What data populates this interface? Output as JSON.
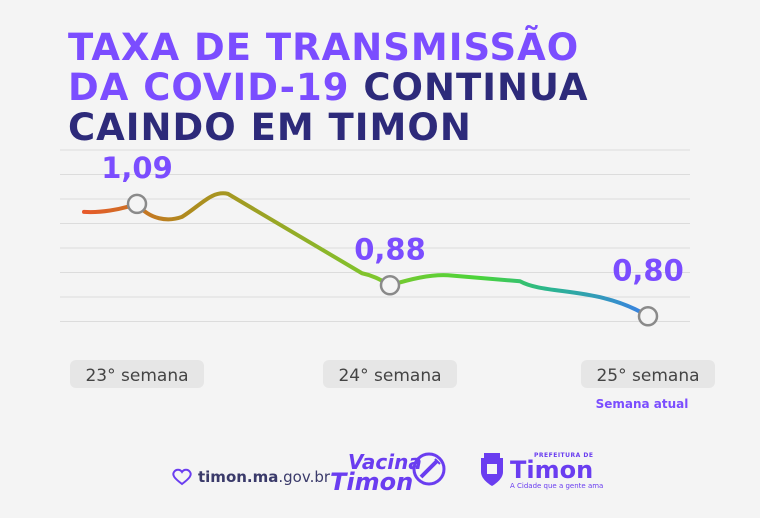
{
  "headline": {
    "line1": "TAXA DE TRANSMISSÃO",
    "line2_highlight": "DA COVID-19",
    "line2_rest": " CONTINUA",
    "line3": "CAINDO EM TIMON"
  },
  "chart_data": {
    "type": "line",
    "categories": [
      "23° semana",
      "24° semana",
      "25° semana"
    ],
    "values": [
      1.09,
      0.88,
      0.8
    ],
    "value_labels": [
      "1,09",
      "0,88",
      "0,80"
    ],
    "current_week_note": "Semana atual",
    "grid": true,
    "ylim": [
      0.7,
      1.1
    ],
    "colors": {
      "start": "#e8582a",
      "mid1": "#b08a1e",
      "mid2": "#7ec72e",
      "mid3": "#4ad43a",
      "mid4": "#2bb68e",
      "end": "#3a7ee8",
      "label": "#7b4dff",
      "marker_fill": "#f4f4f4",
      "marker_stroke": "#8a8a8a"
    }
  },
  "footer": {
    "site_bold": "timon.ma",
    "site_rest": ".gov.br",
    "vacina_line1": "Vacina",
    "vacina_line2": "Timon",
    "pref_top": "PREFEITURA DE",
    "pref_name": "Timon",
    "pref_tag": "A Cidade que a gente ama",
    "icons": [
      "heart-icon",
      "syringe-icon",
      "coat-of-arms-icon"
    ]
  }
}
